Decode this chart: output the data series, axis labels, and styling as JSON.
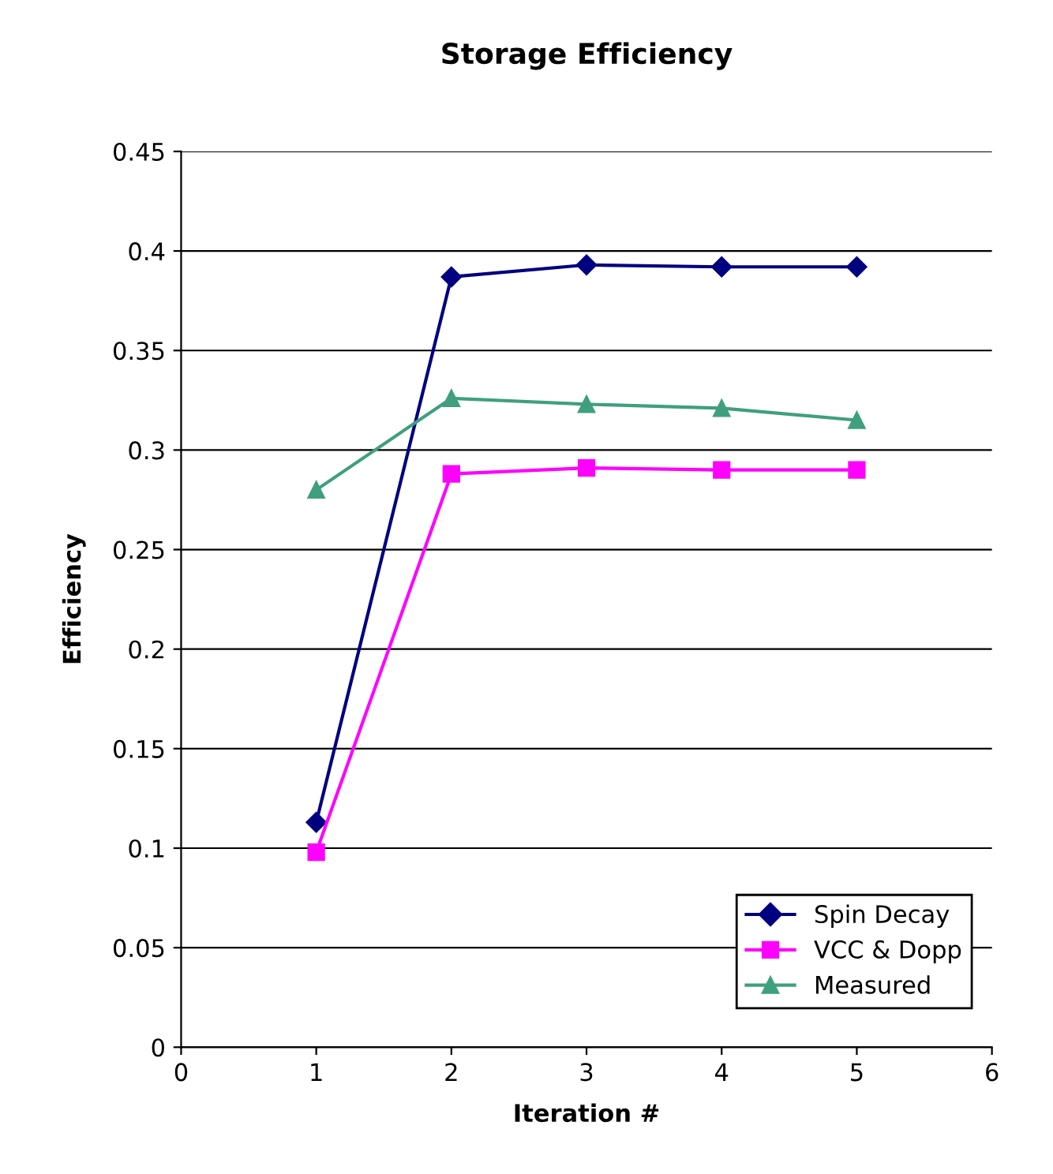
{
  "chart_data": {
    "type": "line",
    "title": "Storage Efficiency",
    "xlabel": "Iteration #",
    "ylabel": "Efficiency",
    "x": [
      1,
      2,
      3,
      4,
      5
    ],
    "series": [
      {
        "name": "Spin Decay",
        "color": "#000080",
        "marker": "diamond",
        "values": [
          0.113,
          0.387,
          0.393,
          0.392,
          0.392
        ]
      },
      {
        "name": "VCC & Dopp",
        "color": "#ff00ff",
        "marker": "square",
        "values": [
          0.098,
          0.288,
          0.291,
          0.29,
          0.29
        ]
      },
      {
        "name": "Measured",
        "color": "#3f9f7f",
        "marker": "triangle",
        "values": [
          0.28,
          0.326,
          0.323,
          0.321,
          0.315
        ]
      }
    ],
    "xlim": [
      0,
      6
    ],
    "xticks": [
      0,
      1,
      2,
      3,
      4,
      5,
      6
    ],
    "ylim": [
      0,
      0.45
    ],
    "yticks": [
      0,
      {
        "value": 0.05,
        "label": "0.05"
      },
      {
        "value": 0.1,
        "label": "0.1"
      },
      {
        "value": 0.15,
        "label": "0.15"
      },
      {
        "value": 0.2,
        "label": "0.2"
      },
      {
        "value": 0.25,
        "label": "0.25"
      },
      {
        "value": 0.3,
        "label": "0.3"
      },
      {
        "value": 0.35,
        "label": "0.35"
      },
      {
        "value": 0.4,
        "label": "0.4"
      },
      {
        "value": 0.45,
        "label": "0.45"
      }
    ],
    "grid": "y",
    "legend": "bottom right",
    "line_style": "solid"
  }
}
